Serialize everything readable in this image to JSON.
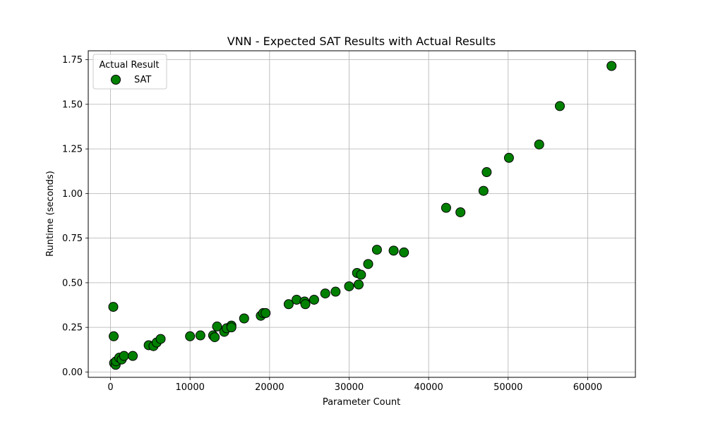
{
  "chart_data": {
    "type": "scatter",
    "title": "VNN - Expected SAT Results with Actual Results",
    "xlabel": "Parameter Count",
    "ylabel": "Runtime (seconds)",
    "xlim": [
      -2800,
      66000
    ],
    "ylim": [
      -0.03,
      1.8
    ],
    "x_ticks": [
      0,
      10000,
      20000,
      30000,
      40000,
      50000,
      60000
    ],
    "x_tick_labels": [
      "0",
      "10000",
      "20000",
      "30000",
      "40000",
      "50000",
      "60000"
    ],
    "y_ticks": [
      0.0,
      0.25,
      0.5,
      0.75,
      1.0,
      1.25,
      1.5,
      1.75
    ],
    "y_tick_labels": [
      "0.00",
      "0.25",
      "0.50",
      "0.75",
      "1.00",
      "1.25",
      "1.50",
      "1.75"
    ],
    "grid": true,
    "legend": {
      "title": "Actual Result",
      "placement": "top-left"
    },
    "series": [
      {
        "name": "SAT",
        "color": "#008000",
        "edge_color": "#000000",
        "points": [
          [
            350,
            0.365
          ],
          [
            400,
            0.2
          ],
          [
            450,
            0.05
          ],
          [
            650,
            0.04
          ],
          [
            700,
            0.06
          ],
          [
            1100,
            0.08
          ],
          [
            1400,
            0.07
          ],
          [
            1700,
            0.09
          ],
          [
            2800,
            0.09
          ],
          [
            4800,
            0.15
          ],
          [
            5400,
            0.145
          ],
          [
            5800,
            0.165
          ],
          [
            6300,
            0.185
          ],
          [
            10000,
            0.2
          ],
          [
            11300,
            0.205
          ],
          [
            12900,
            0.205
          ],
          [
            13100,
            0.195
          ],
          [
            13400,
            0.255
          ],
          [
            14300,
            0.225
          ],
          [
            14600,
            0.245
          ],
          [
            15200,
            0.26
          ],
          [
            15200,
            0.25
          ],
          [
            16800,
            0.3
          ],
          [
            18900,
            0.315
          ],
          [
            19200,
            0.33
          ],
          [
            19500,
            0.33
          ],
          [
            22400,
            0.38
          ],
          [
            23400,
            0.405
          ],
          [
            24400,
            0.395
          ],
          [
            24500,
            0.38
          ],
          [
            25600,
            0.405
          ],
          [
            27000,
            0.44
          ],
          [
            28300,
            0.45
          ],
          [
            30000,
            0.48
          ],
          [
            31000,
            0.555
          ],
          [
            31200,
            0.49
          ],
          [
            31500,
            0.545
          ],
          [
            32400,
            0.605
          ],
          [
            33500,
            0.685
          ],
          [
            35600,
            0.68
          ],
          [
            36900,
            0.67
          ],
          [
            42200,
            0.92
          ],
          [
            44000,
            0.895
          ],
          [
            46900,
            1.015
          ],
          [
            47300,
            1.12
          ],
          [
            50100,
            1.2
          ],
          [
            53900,
            1.275
          ],
          [
            56500,
            1.49
          ],
          [
            63000,
            1.715
          ]
        ]
      }
    ]
  }
}
